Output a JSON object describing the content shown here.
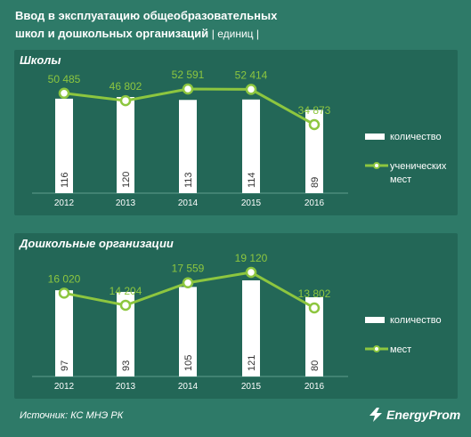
{
  "header": {
    "title_line1": "Ввод в эксплуатацию общеобразовательных",
    "title_line2": "школ и дошкольных организаций",
    "unit": "| единиц |"
  },
  "chart_data": [
    {
      "type": "bar",
      "title": "Школы",
      "categories": [
        "2012",
        "2013",
        "2014",
        "2015",
        "2016"
      ],
      "series": [
        {
          "name": "количество",
          "kind": "bar",
          "values": [
            116,
            120,
            113,
            114,
            89
          ]
        },
        {
          "name": "ученических мест",
          "kind": "line",
          "values": [
            50485,
            46802,
            52591,
            52414,
            34873
          ]
        }
      ],
      "bar_labels": [
        "116",
        "120",
        "113",
        "114",
        "89"
      ],
      "line_labels": [
        "50 485",
        "46 802",
        "52 591",
        "52 414",
        "34 873"
      ],
      "legend": {
        "placement": "right",
        "bar": "количество",
        "line_1": "ученических",
        "line_2": "мест"
      }
    },
    {
      "type": "bar",
      "title": "Дошкольные организации",
      "categories": [
        "2012",
        "2013",
        "2014",
        "2015",
        "2016"
      ],
      "series": [
        {
          "name": "количество",
          "kind": "bar",
          "values": [
            97,
            93,
            105,
            121,
            80
          ]
        },
        {
          "name": "мест",
          "kind": "line",
          "values": [
            16020,
            14204,
            17559,
            19120,
            13802
          ]
        }
      ],
      "bar_labels": [
        "97",
        "93",
        "105",
        "121",
        "80"
      ],
      "line_labels": [
        "16 020",
        "14 204",
        "17 559",
        "19 120",
        "13 802"
      ],
      "legend": {
        "placement": "right",
        "bar": "количество",
        "line_1": "мест",
        "line_2": ""
      }
    }
  ],
  "footer": {
    "source": "Источник: КС МНЭ РК",
    "brand": "EnergyProm"
  },
  "colors": {
    "background": "#2e7a68",
    "panel": "#236757",
    "line": "#8dc63f",
    "bar": "#ffffff",
    "value_label": "#8dc63f"
  }
}
